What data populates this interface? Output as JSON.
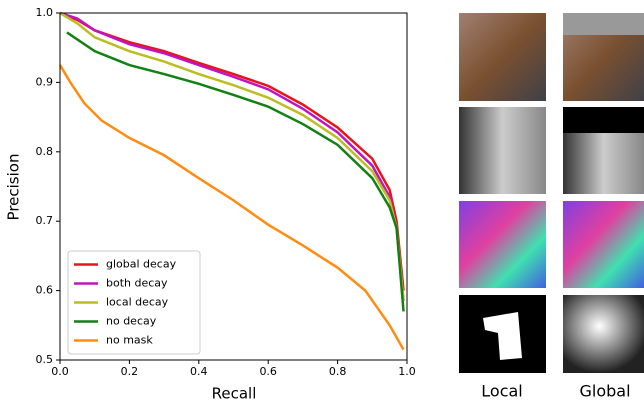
{
  "chart_data": {
    "type": "line",
    "xlabel": "Recall",
    "ylabel": "Precision",
    "xlim": [
      0,
      1
    ],
    "ylim": [
      0.5,
      1
    ],
    "xticks": [
      {
        "value": 0,
        "label": "0.0"
      },
      0.2,
      0.4,
      0.6,
      0.8,
      {
        "value": 1,
        "label": "1.0"
      }
    ],
    "yticks": [
      0.5,
      0.6,
      0.7,
      0.8,
      0.9,
      {
        "value": 1,
        "label": "1.0"
      }
    ],
    "legend": "lower left",
    "series": [
      {
        "name": "global decay",
        "color": "#e8141b",
        "x": [
          0,
          0.05,
          0.1,
          0.2,
          0.3,
          0.4,
          0.5,
          0.6,
          0.7,
          0.8,
          0.9,
          0.95,
          0.97,
          0.99
        ],
        "values": [
          1.0,
          0.99,
          0.975,
          0.958,
          0.945,
          0.928,
          0.912,
          0.895,
          0.868,
          0.835,
          0.79,
          0.745,
          0.7,
          0.6
        ]
      },
      {
        "name": "both decay",
        "color": "#c014c0",
        "x": [
          0,
          0.05,
          0.1,
          0.2,
          0.3,
          0.4,
          0.5,
          0.6,
          0.7,
          0.8,
          0.9,
          0.95,
          0.97,
          0.99
        ],
        "values": [
          1.0,
          0.992,
          0.975,
          0.955,
          0.942,
          0.925,
          0.908,
          0.89,
          0.862,
          0.828,
          0.78,
          0.735,
          0.69,
          0.585
        ]
      },
      {
        "name": "local decay",
        "color": "#bcbd22",
        "x": [
          0,
          0.05,
          0.1,
          0.2,
          0.3,
          0.4,
          0.5,
          0.6,
          0.7,
          0.8,
          0.9,
          0.95,
          0.97,
          0.99
        ],
        "values": [
          1.0,
          0.985,
          0.965,
          0.945,
          0.93,
          0.912,
          0.896,
          0.878,
          0.853,
          0.82,
          0.772,
          0.73,
          0.69,
          0.585
        ]
      },
      {
        "name": "no decay",
        "color": "#138013",
        "x": [
          0.02,
          0.1,
          0.2,
          0.3,
          0.4,
          0.5,
          0.6,
          0.7,
          0.8,
          0.9,
          0.95,
          0.97,
          0.99
        ],
        "values": [
          0.972,
          0.945,
          0.925,
          0.912,
          0.898,
          0.882,
          0.865,
          0.84,
          0.81,
          0.762,
          0.72,
          0.69,
          0.57
        ]
      },
      {
        "name": "no mask",
        "color": "#ff8c12",
        "x": [
          0,
          0.03,
          0.07,
          0.12,
          0.2,
          0.3,
          0.4,
          0.5,
          0.6,
          0.7,
          0.8,
          0.88,
          0.95,
          0.99
        ],
        "values": [
          0.925,
          0.9,
          0.87,
          0.845,
          0.82,
          0.795,
          0.762,
          0.73,
          0.695,
          0.665,
          0.633,
          0.6,
          0.55,
          0.515
        ]
      }
    ]
  },
  "image_labels": [
    "Local",
    "Global"
  ]
}
